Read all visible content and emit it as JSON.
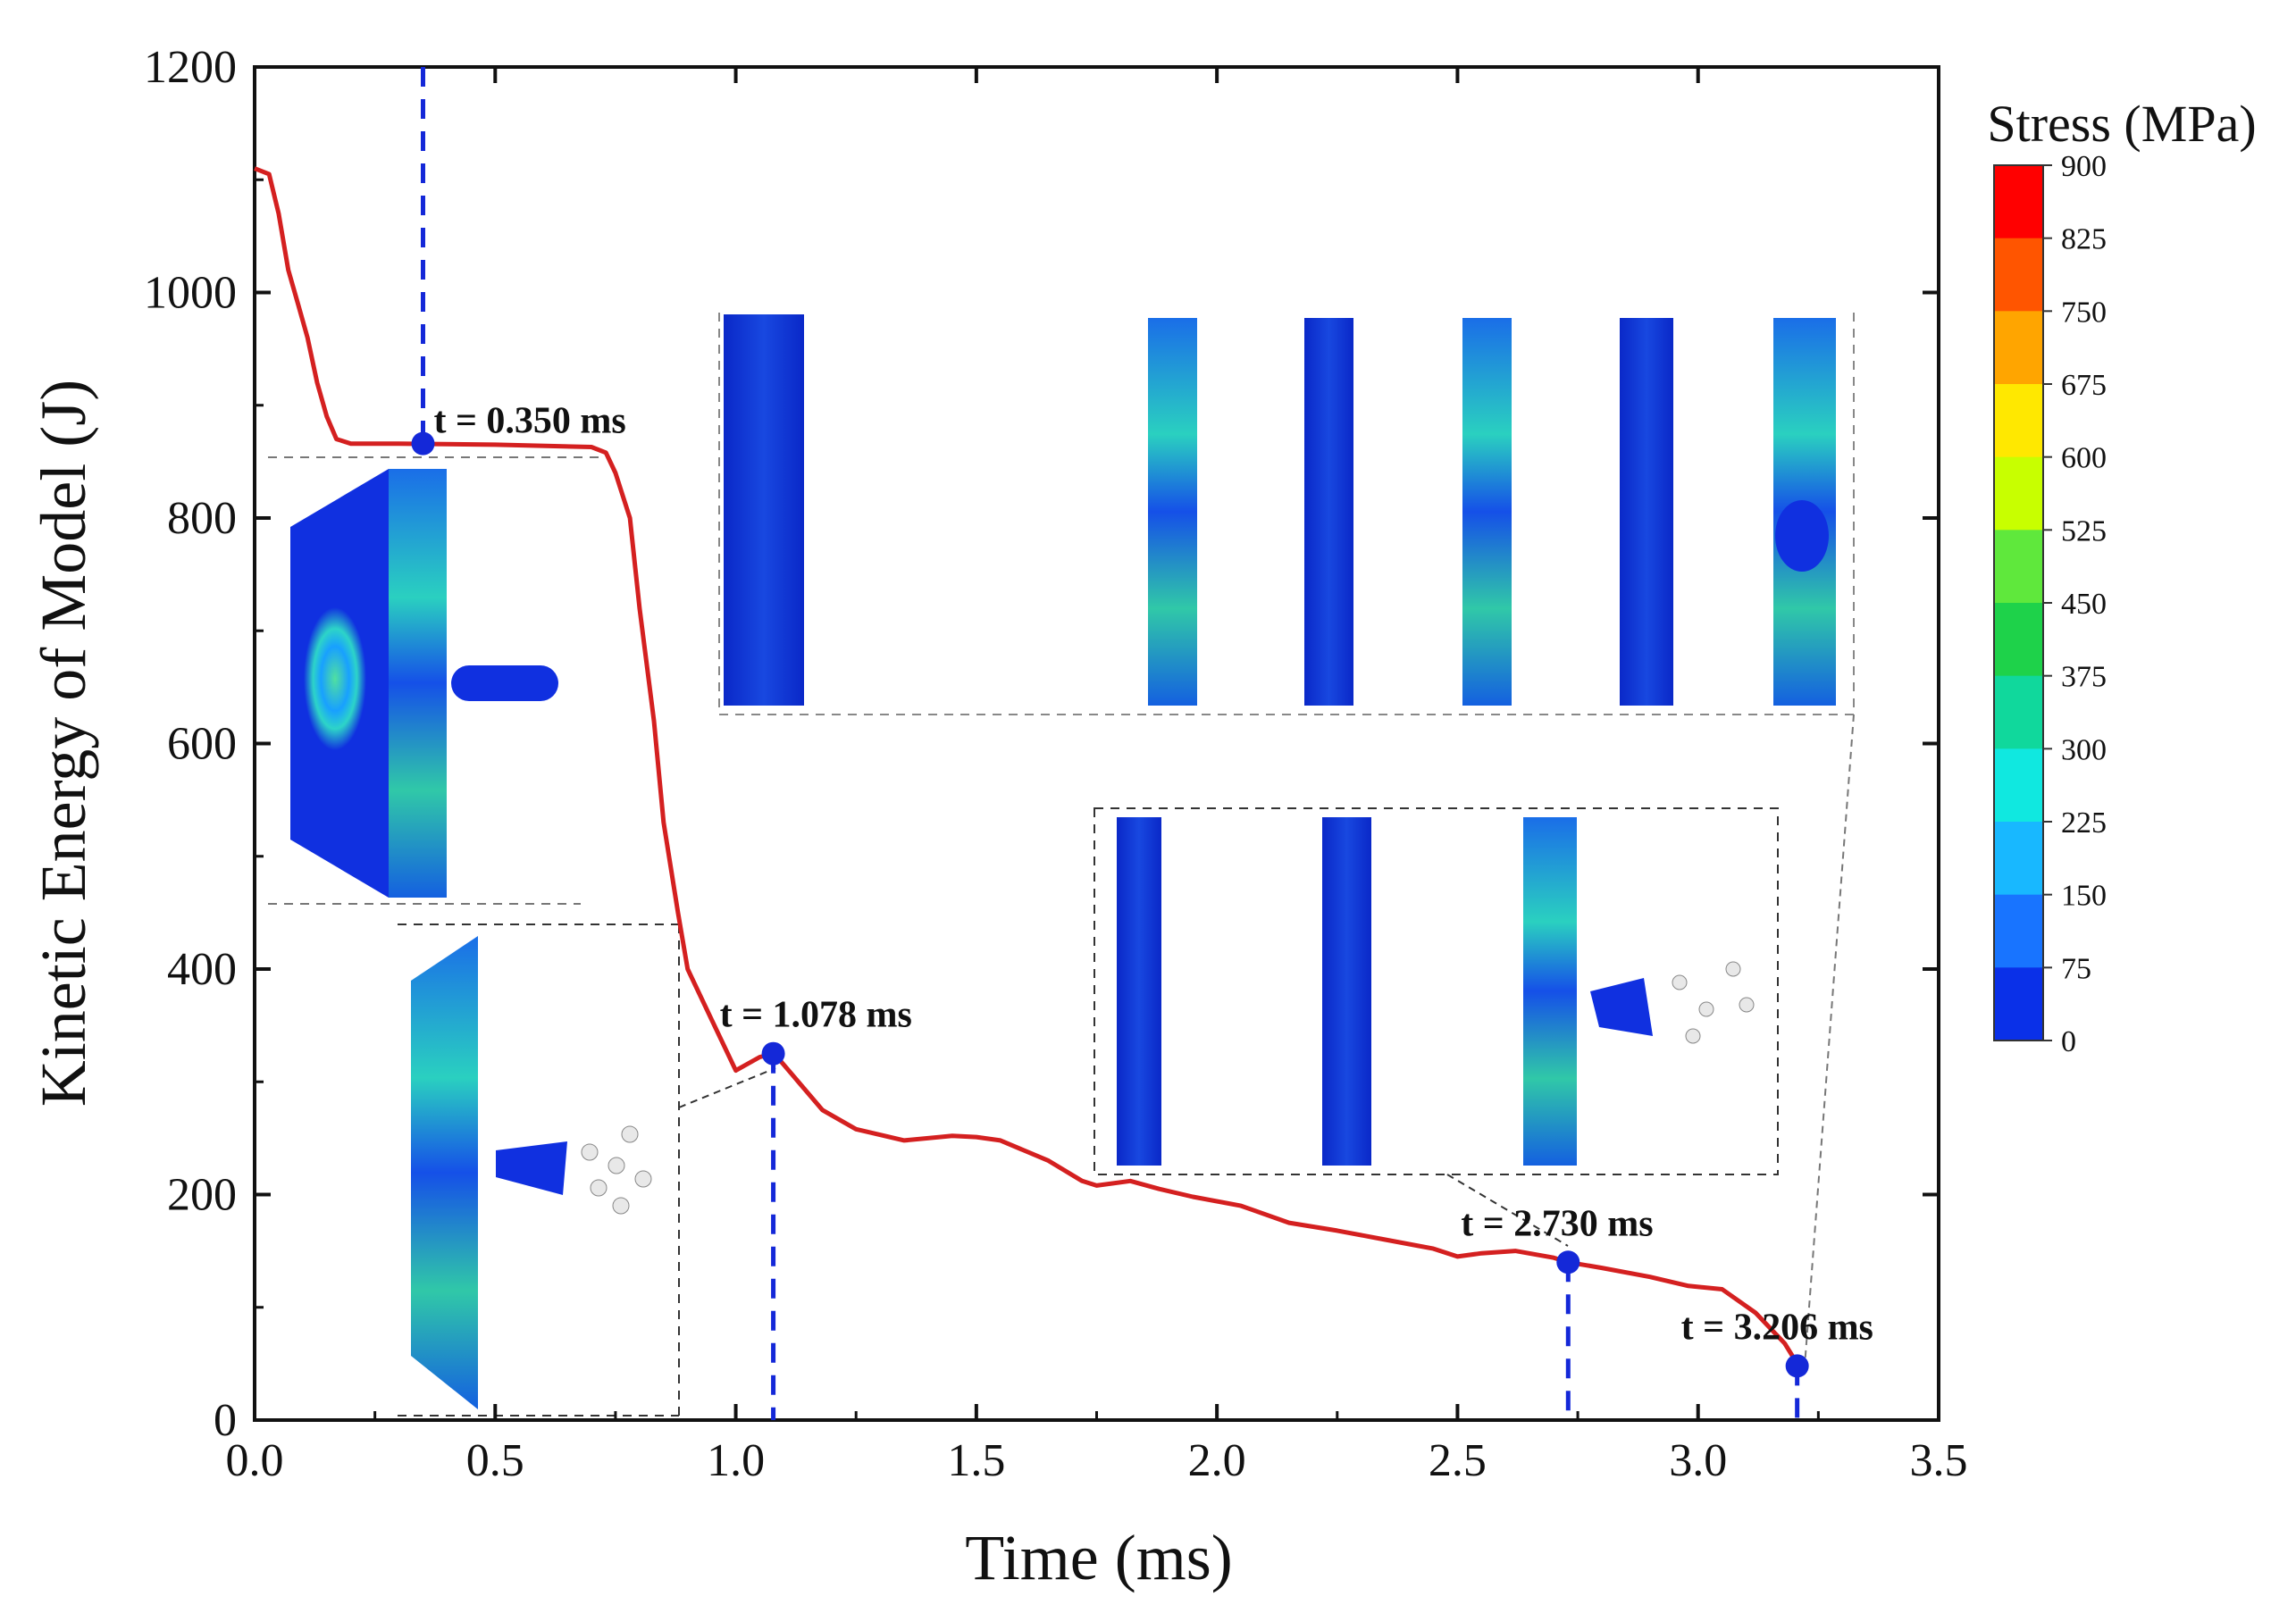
{
  "chart_data": {
    "type": "line",
    "title": "",
    "xlabel": "Time (ms)",
    "ylabel": "Kinetic Energy of Model (J)",
    "xlim": [
      0.0,
      3.5
    ],
    "ylim": [
      0,
      1200
    ],
    "x_ticks": [
      0.0,
      0.5,
      1.0,
      1.5,
      2.0,
      2.5,
      3.0,
      3.5
    ],
    "x_tick_labels": [
      "0.0",
      "0.5",
      "1.0",
      "1.5",
      "2.0",
      "2.5",
      "3.0",
      "3.5"
    ],
    "y_ticks": [
      0,
      200,
      400,
      600,
      800,
      1000,
      1200
    ],
    "y_tick_labels": [
      "0",
      "200",
      "400",
      "600",
      "800",
      "1000",
      "1200"
    ],
    "grid": false,
    "series": [
      {
        "name": "Kinetic energy",
        "color": "#d42020",
        "x": [
          0.0,
          0.03,
          0.05,
          0.07,
          0.09,
          0.11,
          0.13,
          0.15,
          0.17,
          0.2,
          0.3,
          0.5,
          0.7,
          0.73,
          0.75,
          0.78,
          0.8,
          0.83,
          0.85,
          0.88,
          0.9,
          0.95,
          1.0,
          1.05,
          1.08,
          1.12,
          1.18,
          1.25,
          1.35,
          1.45,
          1.5,
          1.55,
          1.65,
          1.72,
          1.75,
          1.82,
          1.88,
          1.95,
          2.05,
          2.15,
          2.25,
          2.35,
          2.45,
          2.5,
          2.55,
          2.62,
          2.7,
          2.73,
          2.8,
          2.9,
          2.98,
          3.05,
          3.12,
          3.18,
          3.206
        ],
        "y": [
          1110,
          1105,
          1070,
          1020,
          990,
          960,
          920,
          890,
          870,
          866,
          866,
          865,
          863,
          858,
          840,
          800,
          720,
          620,
          530,
          450,
          400,
          355,
          310,
          322,
          325,
          305,
          275,
          258,
          248,
          252,
          251,
          248,
          230,
          212,
          208,
          212,
          205,
          198,
          190,
          175,
          168,
          160,
          152,
          145,
          148,
          150,
          144,
          140,
          135,
          127,
          119,
          116,
          95,
          68,
          50
        ]
      }
    ],
    "markers": [
      {
        "x": 0.35,
        "y": 866,
        "label": "t = 0.350 ms"
      },
      {
        "x": 1.078,
        "y": 325,
        "label": "t = 1.078 ms"
      },
      {
        "x": 2.73,
        "y": 140,
        "label": "t = 2.730 ms"
      },
      {
        "x": 3.206,
        "y": 48,
        "label": "t = 3.206 ms"
      }
    ],
    "marker_color": "#1428d8",
    "colorbar": {
      "title": "Stress (MPa)",
      "ticks": [
        "900",
        "825",
        "750",
        "675",
        "600",
        "525",
        "450",
        "375",
        "300",
        "225",
        "150",
        "75",
        "0"
      ],
      "colors": [
        "#ff0000",
        "#ff5500",
        "#ffa500",
        "#ffe800",
        "#c8ff00",
        "#5fe83c",
        "#1ed24a",
        "#10d89c",
        "#10e8e0",
        "#18b8ff",
        "#1874ff",
        "#0a30e8"
      ]
    },
    "insets": [
      {
        "name": "inset-0350",
        "description": "panel and projectile at t = 0.350 ms"
      },
      {
        "name": "inset-1078",
        "description": "perforation at t = 1.078 ms"
      },
      {
        "name": "inset-2730",
        "description": "layer sequence at t = 2.730 ms"
      },
      {
        "name": "inset-3206",
        "description": "layer sequence at t = 3.206 ms"
      }
    ]
  }
}
